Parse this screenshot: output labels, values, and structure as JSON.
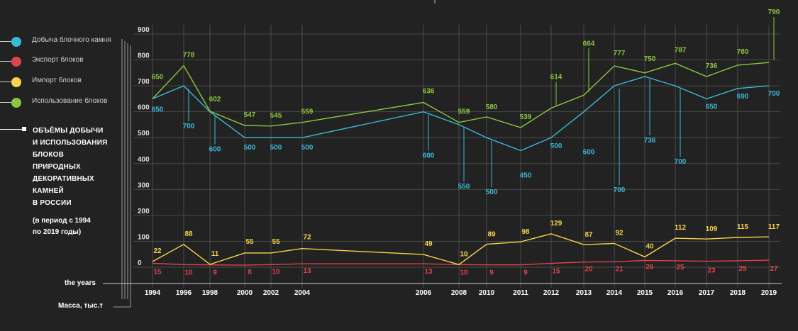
{
  "legend": [
    {
      "label": "Добыча блочного камня",
      "color": "#3bb8d6"
    },
    {
      "label": "Экспорт блоков",
      "color": "#e0424f"
    },
    {
      "label": "Импорт блоков",
      "color": "#f7d44a"
    },
    {
      "label": "Использование блоков",
      "color": "#8cc63f"
    }
  ],
  "title": {
    "line1": "ОБЪЁМЫ ДОБЫЧИ",
    "line2": "И ИСПОЛЬЗОВАНИЯ",
    "line3": "БЛОКОВ",
    "line4": "ПРИРОДНЫХ",
    "line5": "ДЕКОРАТИВНЫХ",
    "line6": "КАМНЕЙ",
    "line7": "В РОССИИ",
    "sub1": "(в период с 1994",
    "sub2": "по 2019  годы)"
  },
  "axis": {
    "x_label": "the years",
    "y_label": "Масса, тыс.т"
  },
  "chart_data": {
    "type": "line",
    "title": "ОБЪЁМЫ ДОБЫЧИ И ИСПОЛЬЗОВАНИЯ БЛОКОВ ПРИРОДНЫХ ДЕКОРАТИВНЫХ КАМНЕЙ В РОССИИ (в период с 1994 по 2019 годы)",
    "xlabel": "the years",
    "ylabel": "Масса, тыс.т",
    "ylim": [
      0,
      900
    ],
    "y_ticks": [
      0,
      100,
      200,
      300,
      400,
      500,
      600,
      700,
      800,
      900
    ],
    "x": [
      "1994",
      "1996",
      "1998",
      "2000",
      "2002",
      "2004",
      "2006",
      "2008",
      "2010",
      "2011",
      "2012",
      "2013",
      "2014",
      "2015",
      "2016",
      "2017",
      "2018",
      "2019"
    ],
    "grid": true,
    "legend_position": "top-left",
    "series": [
      {
        "name": "Добыча блочного камня",
        "color": "#3bb8d6",
        "values": [
          650,
          700,
          600,
          500,
          500,
          500,
          600,
          550,
          500,
          450,
          500,
          600,
          700,
          736,
          700,
          650,
          690,
          700
        ]
      },
      {
        "name": "Экспорт блоков",
        "color": "#e0424f",
        "values": [
          15,
          10,
          9,
          8,
          10,
          13,
          13,
          10,
          9,
          9,
          15,
          20,
          21,
          26,
          25,
          23,
          25,
          27
        ]
      },
      {
        "name": "Импорт блоков",
        "color": "#f7d44a",
        "values": [
          22,
          88,
          11,
          55,
          55,
          72,
          49,
          10,
          89,
          98,
          129,
          87,
          92,
          40,
          112,
          109,
          115,
          117
        ]
      },
      {
        "name": "Использование блоков",
        "color": "#8cc63f",
        "values": [
          650,
          778,
          602,
          547,
          545,
          559,
          636,
          559,
          580,
          539,
          614,
          664,
          777,
          750,
          787,
          736,
          780,
          790
        ]
      }
    ]
  }
}
